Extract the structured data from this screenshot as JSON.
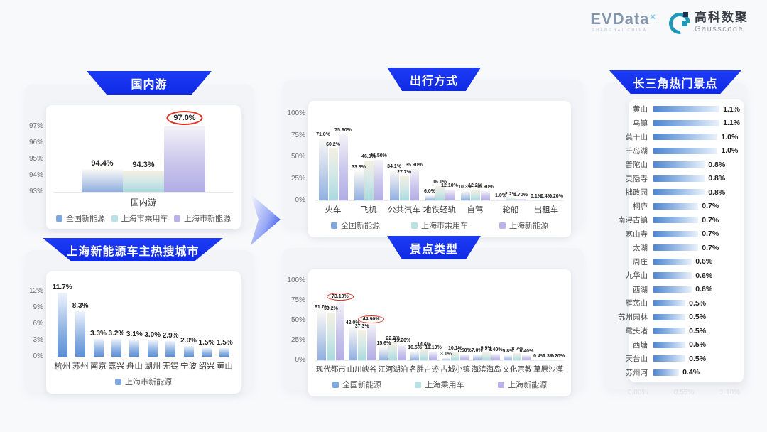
{
  "logos": {
    "evdata": {
      "text": "EVData",
      "sup": "×",
      "subtext": "SHANGHAI CHINA"
    },
    "gausscode": {
      "cn": "高科数聚",
      "en": "Gausscode"
    }
  },
  "colors": {
    "background": "#f8f9fb",
    "banner_blue": "#1232f0",
    "series_national_ev": "#7ea8dd",
    "series_shanghai_passenger": "#b7e1e5",
    "series_shanghai_ev": "#b9b3e9",
    "city_bar_blue": "#5b8fd6",
    "hbar_blue": "#4f86cf",
    "annotation_red": "#dd2f1e",
    "logo_teal": "#2397b6"
  },
  "chart_data": [
    {
      "id": "domestic",
      "type": "bar",
      "title": "国内游",
      "xlabel": "国内游",
      "ylim": [
        93,
        97.6
      ],
      "yticks": [
        {
          "v": 93,
          "label": "93%"
        },
        {
          "v": 94,
          "label": "94%"
        },
        {
          "v": 95,
          "label": "95%"
        },
        {
          "v": 96,
          "label": "96%"
        },
        {
          "v": 97,
          "label": "97%"
        }
      ],
      "categories": [
        "国内游"
      ],
      "series": [
        {
          "name": "全国新能源",
          "values": [
            94.4
          ],
          "labels": [
            "94.4%"
          ]
        },
        {
          "name": "上海市乘用车",
          "values": [
            94.3
          ],
          "labels": [
            "94.3%"
          ]
        },
        {
          "name": "上海市新能源",
          "values": [
            97.0
          ],
          "labels": [
            "97.0%"
          ]
        }
      ],
      "circled": [
        {
          "series": 2,
          "index": 0
        }
      ],
      "legend_position": "bottom"
    },
    {
      "id": "cities",
      "type": "bar",
      "title": "上海新能源车主热搜城市",
      "ylim": [
        0,
        13.5
      ],
      "yticks": [
        {
          "v": 0,
          "label": "0%"
        },
        {
          "v": 3,
          "label": "3%"
        },
        {
          "v": 6,
          "label": "6%"
        },
        {
          "v": 9,
          "label": "9%"
        },
        {
          "v": 12,
          "label": "12%"
        }
      ],
      "categories": [
        "杭州",
        "苏州",
        "南京",
        "嘉兴",
        "舟山",
        "湖州",
        "无锡",
        "宁波",
        "绍兴",
        "黄山"
      ],
      "series": [
        {
          "name": "上海市新能源",
          "values": [
            11.7,
            8.3,
            3.3,
            3.2,
            3.1,
            3.0,
            2.9,
            2.0,
            1.5,
            1.5
          ],
          "labels": [
            "11.7%",
            "8.3%",
            "3.3%",
            "3.2%",
            "3.1%",
            "3.0%",
            "2.9%",
            "2.0%",
            "1.5%",
            "1.5%"
          ]
        }
      ],
      "bar_classes": [
        "city"
      ],
      "legend_position": "bottom"
    },
    {
      "id": "travel",
      "type": "bar",
      "title": "出行方式",
      "ylim": [
        0,
        105
      ],
      "yticks": [
        {
          "v": 0,
          "label": "0%"
        },
        {
          "v": 25,
          "label": "25%"
        },
        {
          "v": 50,
          "label": "50%"
        },
        {
          "v": 75,
          "label": "75%"
        },
        {
          "v": 100,
          "label": "100%"
        }
      ],
      "categories": [
        "火车",
        "飞机",
        "公共汽车",
        "地铁轻轨",
        "自驾",
        "轮船",
        "出租车"
      ],
      "series": [
        {
          "name": "全国新能源",
          "values": [
            71.0,
            33.8,
            34.1,
            6.0,
            10.3,
            1.0,
            0.1
          ],
          "labels": [
            "71.0%",
            "33.8%",
            "34.1%",
            "6.0%",
            "10.3%",
            "1.0%",
            "0.1%"
          ]
        },
        {
          "name": "上海市乘用车",
          "values": [
            60.2,
            46.0,
            27.7,
            16.1,
            12.2,
            2.2,
            0.4
          ],
          "labels": [
            "60.2%",
            "46.0%",
            "27.7%",
            "16.1%",
            "12.2%",
            "2.2%",
            "0.4%"
          ]
        },
        {
          "name": "上海新能源",
          "values": [
            75.9,
            46.5,
            35.9,
            12.1,
            10.9,
            1.7,
            0.2
          ],
          "labels": [
            "75.90%",
            "46.50%",
            "35.90%",
            "12.10%",
            "10.90%",
            "1.70%",
            "0.20%"
          ]
        }
      ],
      "legend_position": "bottom"
    },
    {
      "id": "attract",
      "type": "bar",
      "title": "景点类型",
      "ylim": [
        0,
        105
      ],
      "yticks": [
        {
          "v": 0,
          "label": "0%"
        },
        {
          "v": 25,
          "label": "25%"
        },
        {
          "v": 50,
          "label": "50%"
        },
        {
          "v": 75,
          "label": "75%"
        },
        {
          "v": 100,
          "label": "100%"
        }
      ],
      "categories": [
        "现代都市",
        "山川峡谷",
        "江河湖泊",
        "名胜古迹",
        "古城小镇",
        "海滨海岛",
        "文化宗教",
        "草原沙漠"
      ],
      "series": [
        {
          "name": "全国新能源",
          "values": [
            61.7,
            42.0,
            15.6,
            10.5,
            3.1,
            7.0,
            5.8,
            0.4
          ],
          "labels": [
            "61.7%",
            "42.0%",
            "15.6%",
            "10.5%",
            "3.1%",
            "7.0%",
            "5.8%",
            "0.4%"
          ]
        },
        {
          "name": "上海乘用车",
          "values": [
            59.2,
            37.3,
            22.2,
            14.6,
            10.1,
            9.9,
            8.7,
            0.3
          ],
          "labels": [
            "59.2%",
            "37.3%",
            "22.2%",
            "14.6%",
            "10.1%",
            "9.9%",
            "8.7%",
            "0.3%"
          ]
        },
        {
          "name": "上海新能源",
          "values": [
            73.1,
            44.9,
            19.2,
            11.1,
            7.5,
            8.4,
            6.4,
            0.2
          ],
          "labels": [
            "73.10%",
            "44.90%",
            "19.20%",
            "11.10%",
            "7.50%",
            "8.40%",
            "6.40%",
            "0.20%"
          ]
        }
      ],
      "circled": [
        {
          "series": 2,
          "index": 0
        },
        {
          "series": 2,
          "index": 1
        }
      ],
      "legend_position": "bottom"
    },
    {
      "id": "hotspots",
      "type": "bar",
      "orientation": "horizontal",
      "title": "长三角热门景点",
      "xlim": [
        0,
        1.35
      ],
      "xticks": [
        "0.00%",
        "0.55%",
        "1.10%"
      ],
      "items": [
        {
          "name": "黄山",
          "value": 1.1,
          "label": "1.1%"
        },
        {
          "name": "乌镇",
          "value": 1.1,
          "label": "1.1%"
        },
        {
          "name": "莫干山",
          "value": 1.0,
          "label": "1.0%"
        },
        {
          "name": "千岛湖",
          "value": 1.0,
          "label": "1.0%"
        },
        {
          "name": "普陀山",
          "value": 0.8,
          "label": "0.8%"
        },
        {
          "name": "灵隐寺",
          "value": 0.8,
          "label": "0.8%"
        },
        {
          "name": "拙政园",
          "value": 0.8,
          "label": "0.8%"
        },
        {
          "name": "桐庐",
          "value": 0.7,
          "label": "0.7%"
        },
        {
          "name": "南浔古镇",
          "value": 0.7,
          "label": "0.7%"
        },
        {
          "name": "寒山寺",
          "value": 0.7,
          "label": "0.7%"
        },
        {
          "name": "太湖",
          "value": 0.7,
          "label": "0.7%"
        },
        {
          "name": "周庄",
          "value": 0.6,
          "label": "0.6%"
        },
        {
          "name": "九华山",
          "value": 0.6,
          "label": "0.6%"
        },
        {
          "name": "西湖",
          "value": 0.6,
          "label": "0.6%"
        },
        {
          "name": "雁荡山",
          "value": 0.5,
          "label": "0.5%"
        },
        {
          "name": "苏州园林",
          "value": 0.5,
          "label": "0.5%"
        },
        {
          "name": "鼋头渚",
          "value": 0.5,
          "label": "0.5%"
        },
        {
          "name": "西塘",
          "value": 0.5,
          "label": "0.5%"
        },
        {
          "name": "天台山",
          "value": 0.5,
          "label": "0.5%"
        },
        {
          "name": "苏州河",
          "value": 0.4,
          "label": "0.4%"
        }
      ]
    }
  ]
}
